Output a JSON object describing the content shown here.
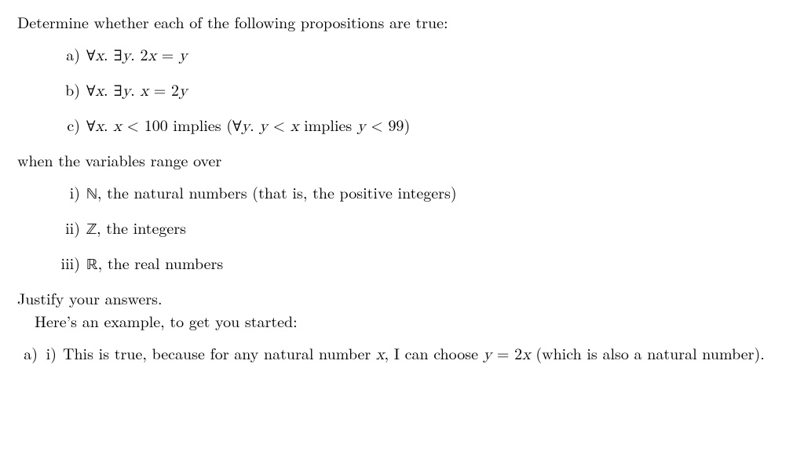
{
  "intro": "Determine whether each of the following propositions are true:",
  "props": {
    "a": {
      "marker": "a)",
      "html": "<span class='q'>∀</span><span class='m'>x</span><span class='up'>.</span> <span class='q'>∃</span><span class='m'>y</span><span class='up'>.</span> <span class='up'>2</span><span class='m'>x</span> <span class='up'>=</span> <span class='m'>y</span>"
    },
    "b": {
      "marker": "b)",
      "html": "<span class='q'>∀</span><span class='m'>x</span><span class='up'>.</span> <span class='q'>∃</span><span class='m'>y</span><span class='up'>.</span> <span class='m'>x</span> <span class='up'>=</span> <span class='up'>2</span><span class='m'>y</span>"
    },
    "c": {
      "marker": "c)",
      "html": "<span class='q'>∀</span><span class='m'>x</span><span class='up'>.</span> <span class='m'>x</span> <span class='up'>&lt;</span> <span class='up'>100</span> <span class='up'>implies</span> <span class='up'>(</span><span class='q'>∀</span><span class='m'>y</span><span class='up'>.</span> <span class='m'>y</span> <span class='up'>&lt;</span> <span class='m'>x</span> <span class='up'>implies</span> <span class='m'>y</span> <span class='up'>&lt;</span> <span class='up'>99</span><span class='up'>)</span>"
    }
  },
  "when": "when the variables range over",
  "domains": {
    "i": {
      "marker": "i)",
      "sym": "ℕ",
      "desc": ", the natural numbers (that is, the positive integers)"
    },
    "ii": {
      "marker": "ii)",
      "sym": "ℤ",
      "desc": ", the integers"
    },
    "iii": {
      "marker": "iii)",
      "sym": "ℝ",
      "desc": ", the real numbers"
    }
  },
  "justify": "Justify your answers.",
  "example_lead": "Here’s an example, to get you started:",
  "example": {
    "marker_a": "a)",
    "marker_i": "i)",
    "html": "This is true, because for any natural number <span class='m'>x</span>, I can choose <span class='m'>y</span> <span class='up'>=</span> <span class='up'>2</span><span class='m'>x</span> (which is also a natural number)."
  }
}
